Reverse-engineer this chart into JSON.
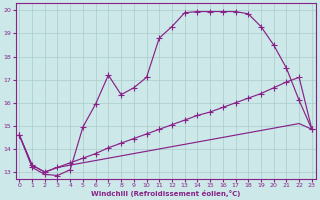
{
  "xlabel": "Windchill (Refroidissement éolien,°C)",
  "bg_color": "#cce8e8",
  "line_color": "#882288",
  "grid_color": "#aacccc",
  "xlim": [
    -0.3,
    23.3
  ],
  "ylim": [
    12.7,
    20.3
  ],
  "xticks": [
    0,
    1,
    2,
    3,
    4,
    5,
    6,
    7,
    8,
    9,
    10,
    11,
    12,
    13,
    14,
    15,
    16,
    17,
    18,
    19,
    20,
    21,
    22,
    23
  ],
  "yticks": [
    13,
    14,
    15,
    16,
    17,
    18,
    19,
    20
  ],
  "curve1_x": [
    0,
    1,
    2,
    3,
    4,
    5,
    6,
    7,
    8,
    9,
    10,
    11,
    12,
    13,
    14,
    15,
    16,
    17,
    18,
    19,
    20,
    21,
    22,
    23
  ],
  "curve1_y": [
    14.6,
    13.2,
    12.9,
    12.85,
    13.1,
    14.95,
    15.95,
    17.2,
    16.35,
    16.65,
    17.1,
    18.8,
    19.3,
    19.9,
    19.95,
    19.95,
    19.95,
    19.95,
    19.85,
    19.3,
    18.5,
    17.5,
    16.1,
    14.85
  ],
  "curve2_x": [
    0,
    1,
    2,
    3,
    4,
    5,
    6,
    7,
    8,
    9,
    10,
    11,
    12,
    13,
    14,
    15,
    16,
    17,
    18,
    19,
    20,
    21,
    22,
    23
  ],
  "curve2_y": [
    14.6,
    13.3,
    13.0,
    13.2,
    13.4,
    13.6,
    13.8,
    14.05,
    14.25,
    14.45,
    14.65,
    14.85,
    15.05,
    15.25,
    15.45,
    15.6,
    15.8,
    16.0,
    16.2,
    16.4,
    16.65,
    16.9,
    17.1,
    14.85
  ],
  "curve3_x": [
    0,
    1,
    2,
    3,
    4,
    5,
    6,
    7,
    8,
    9,
    10,
    11,
    12,
    13,
    14,
    15,
    16,
    17,
    18,
    19,
    20,
    21,
    22,
    23
  ],
  "curve3_y": [
    14.6,
    13.3,
    13.0,
    13.2,
    13.3,
    13.4,
    13.5,
    13.6,
    13.7,
    13.8,
    13.9,
    14.0,
    14.1,
    14.2,
    14.3,
    14.4,
    14.5,
    14.6,
    14.7,
    14.8,
    14.9,
    15.0,
    15.1,
    14.85
  ]
}
